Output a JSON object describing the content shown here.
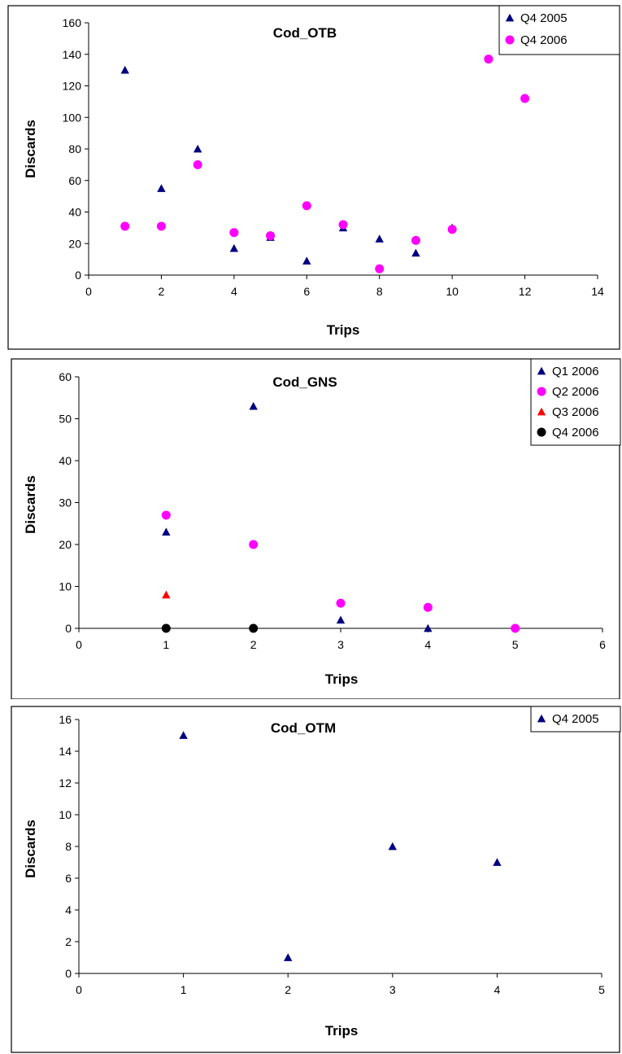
{
  "chart_data": [
    {
      "type": "scatter",
      "title": "Cod_OTB",
      "xlabel": "Trips",
      "ylabel": "Discards",
      "xlim": [
        0,
        14
      ],
      "ylim": [
        0,
        160
      ],
      "xticks": [
        "0",
        "2",
        "4",
        "6",
        "8",
        "10",
        "12",
        "14"
      ],
      "yticks": [
        "0",
        "20",
        "40",
        "60",
        "80",
        "100",
        "120",
        "140",
        "160"
      ],
      "grid": false,
      "legend_position": "top-right",
      "series": [
        {
          "name": "Q4 2005",
          "marker": "triangle",
          "color": "#000080",
          "x": [
            1,
            2,
            3,
            4,
            5,
            6,
            7,
            8,
            9,
            10
          ],
          "y": [
            130,
            55,
            80,
            17,
            24,
            9,
            30,
            23,
            14,
            30
          ]
        },
        {
          "name": "Q4 2006",
          "marker": "circle",
          "color": "#FF00FF",
          "x": [
            1,
            2,
            3,
            4,
            5,
            6,
            7,
            8,
            9,
            10,
            11,
            12
          ],
          "y": [
            31,
            31,
            70,
            27,
            25,
            44,
            32,
            4,
            22,
            29,
            137,
            112
          ]
        }
      ]
    },
    {
      "type": "scatter",
      "title": "Cod_GNS",
      "xlabel": "Trips",
      "ylabel": "Discards",
      "xlim": [
        0,
        6
      ],
      "ylim": [
        0,
        60
      ],
      "xticks": [
        "0",
        "1",
        "2",
        "3",
        "4",
        "5",
        "6"
      ],
      "yticks": [
        "0",
        "10",
        "20",
        "30",
        "40",
        "50",
        "60"
      ],
      "grid": false,
      "legend_position": "top-right",
      "series": [
        {
          "name": "Q1 2006",
          "marker": "triangle",
          "color": "#000080",
          "x": [
            1,
            2,
            3,
            4
          ],
          "y": [
            23,
            53,
            2,
            0
          ]
        },
        {
          "name": "Q2 2006",
          "marker": "circle",
          "color": "#FF00FF",
          "x": [
            1,
            2,
            3,
            4,
            5
          ],
          "y": [
            27,
            20,
            6,
            5,
            0
          ]
        },
        {
          "name": "Q3 2006",
          "marker": "triangle",
          "color": "#FF0000",
          "x": [
            1
          ],
          "y": [
            8
          ]
        },
        {
          "name": "Q4 2006",
          "marker": "circle",
          "color": "#000000",
          "x": [
            1,
            2
          ],
          "y": [
            0,
            0
          ]
        }
      ]
    },
    {
      "type": "scatter",
      "title": "Cod_OTM",
      "xlabel": "Trips",
      "ylabel": "Discards",
      "xlim": [
        0,
        5
      ],
      "ylim": [
        0,
        16
      ],
      "xticks": [
        "0",
        "1",
        "2",
        "3",
        "4",
        "5"
      ],
      "yticks": [
        "0",
        "2",
        "4",
        "6",
        "8",
        "10",
        "12",
        "14",
        "16"
      ],
      "grid": false,
      "legend_position": "top-right",
      "series": [
        {
          "name": "Q4 2005",
          "marker": "triangle",
          "color": "#000080",
          "x": [
            1,
            2,
            3,
            4
          ],
          "y": [
            15,
            1,
            8,
            7
          ]
        }
      ]
    }
  ]
}
